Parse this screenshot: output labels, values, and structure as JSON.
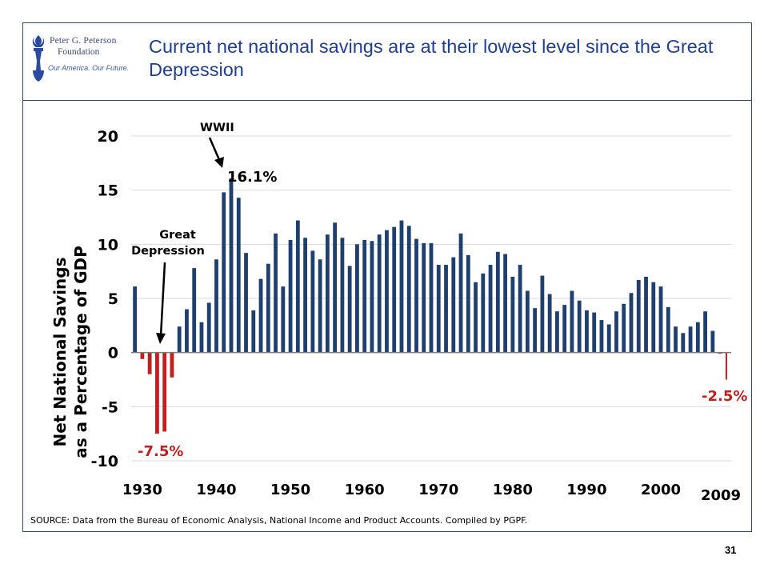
{
  "header": {
    "title": "Current net national savings are at their lowest level since the Great Depression",
    "logo": {
      "line1": "Peter G. Peterson",
      "line2": "Foundation",
      "tagline": "Our America. Our Future.",
      "icon": "torch-icon"
    }
  },
  "chart_data": {
    "type": "bar",
    "title": "",
    "ylabel_line1": "Net National Savings",
    "ylabel_line2": "as a Percentage of GDP",
    "ylim": [
      -10,
      20
    ],
    "yticks": [
      "20",
      "15",
      "10",
      "5",
      "0",
      "-5",
      "-10"
    ],
    "xticks": [
      "1930",
      "1940",
      "1950",
      "1960",
      "1970",
      "1980",
      "1990",
      "2000"
    ],
    "x_last_label": "2009",
    "grid": true,
    "x": [
      1929,
      1930,
      1931,
      1932,
      1933,
      1934,
      1935,
      1936,
      1937,
      1938,
      1939,
      1940,
      1941,
      1942,
      1943,
      1944,
      1945,
      1946,
      1947,
      1948,
      1949,
      1950,
      1951,
      1952,
      1953,
      1954,
      1955,
      1956,
      1957,
      1958,
      1959,
      1960,
      1961,
      1962,
      1963,
      1964,
      1965,
      1966,
      1967,
      1968,
      1969,
      1970,
      1971,
      1972,
      1973,
      1974,
      1975,
      1976,
      1977,
      1978,
      1979,
      1980,
      1981,
      1982,
      1983,
      1984,
      1985,
      1986,
      1987,
      1988,
      1989,
      1990,
      1991,
      1992,
      1993,
      1994,
      1995,
      1996,
      1997,
      1998,
      1999,
      2000,
      2001,
      2002,
      2003,
      2004,
      2005,
      2006,
      2007,
      2008,
      2009
    ],
    "values": [
      6.1,
      -0.6,
      -2.0,
      -7.5,
      -7.3,
      -2.3,
      2.4,
      4.0,
      7.8,
      2.8,
      4.6,
      8.6,
      14.8,
      16.1,
      14.3,
      9.2,
      3.9,
      6.8,
      8.2,
      11.0,
      6.1,
      10.4,
      12.2,
      10.6,
      9.4,
      8.6,
      10.9,
      12.0,
      10.6,
      8.0,
      10.0,
      10.4,
      10.3,
      10.9,
      11.3,
      11.6,
      12.2,
      11.7,
      10.5,
      10.1,
      10.1,
      8.1,
      8.1,
      8.8,
      11.0,
      9.0,
      6.5,
      7.3,
      8.1,
      9.3,
      9.1,
      7.0,
      8.1,
      5.7,
      4.1,
      7.1,
      5.4,
      3.8,
      4.4,
      5.7,
      4.8,
      3.9,
      3.7,
      3.0,
      2.6,
      3.8,
      4.5,
      5.5,
      6.7,
      7.0,
      6.5,
      6.1,
      4.2,
      2.4,
      1.8,
      2.4,
      2.8,
      3.8,
      2.0,
      -0.1,
      -2.5
    ],
    "annotations": {
      "wwii": "WWII",
      "wwii_value": "16.1%",
      "great_depression_line1": "Great",
      "great_depression_line2": "Depression",
      "low_value": "-7.5%",
      "latest_value": "-2.5%"
    },
    "colors": {
      "positive": "#1f3f6f",
      "negative": "#c41e1e",
      "grid": "#d9d9d9"
    }
  },
  "footer": {
    "source": "SOURCE: Data from the Bureau of Economic Analysis, National Income and Product Accounts. Compiled by PGPF.",
    "page_number": "31"
  }
}
